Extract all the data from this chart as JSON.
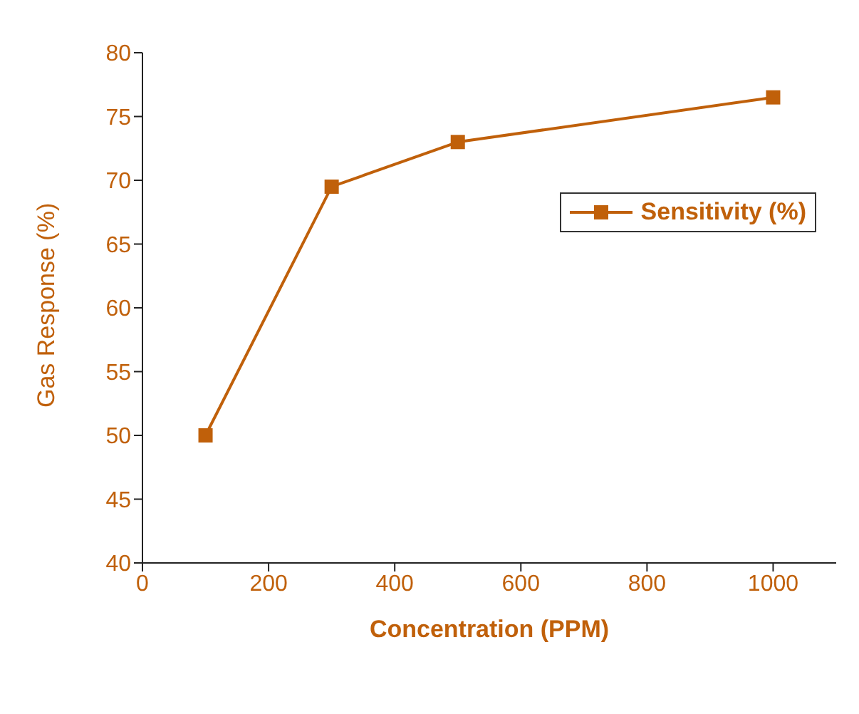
{
  "chart_data": {
    "type": "line",
    "xlabel": "Concentration (PPM)",
    "ylabel": "Gas Response (%)",
    "x": [
      100,
      300,
      500,
      1000
    ],
    "series": [
      {
        "name": "Sensitivity (%)",
        "color": "#c0600a",
        "values": [
          50,
          69.5,
          73,
          76.5
        ]
      }
    ],
    "xlim": [
      0,
      1100
    ],
    "xticks": [
      0,
      200,
      400,
      600,
      800,
      1000
    ],
    "ylim": [
      40,
      80
    ],
    "yticks": [
      40,
      45,
      50,
      55,
      60,
      65,
      70,
      75,
      80
    ],
    "grid": false,
    "legend": "right",
    "marker": "square",
    "line_style": "solid"
  }
}
